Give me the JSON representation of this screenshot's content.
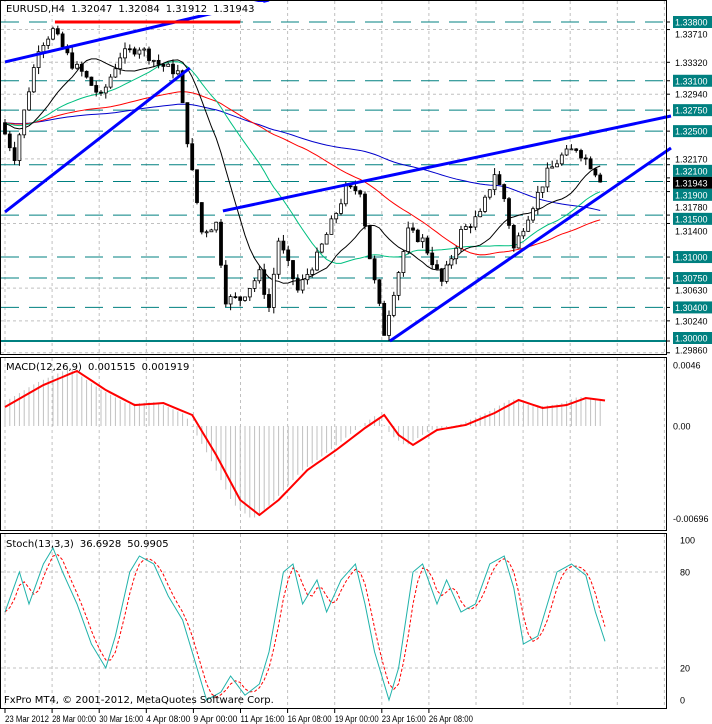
{
  "header": {
    "symbol": "EURUSD,H4",
    "open": "1.32047",
    "high": "1.32084",
    "low": "1.31912",
    "close": "1.31943"
  },
  "copyright": "FxPro MT4, © 2001-2012, MetaQuotes Software Corp.",
  "colors": {
    "bg": "#ffffff",
    "grid": "#c0c0c0",
    "level": "#008080",
    "trend": "#0000ff",
    "macd_signal": "#ff0000",
    "hist": "#c0c0c0",
    "stoch_main": "#20b2aa",
    "stoch_signal": "#ff0000"
  },
  "chart_data": [
    {
      "type": "candlestick",
      "title": "EURUSD,H4",
      "ylim": [
        1.2975,
        1.3405
      ],
      "bars": 125,
      "x_tick_labels": [
        "23 Mar 2012",
        "28 Mar 00:00",
        "30 Mar 16:00",
        "4 Apr 08:00",
        "9 Apr 00:00",
        "11 Apr 16:00",
        "16 Apr 08:00",
        "19 Apr 00:00",
        "23 Apr 16:00",
        "26 Apr 08:00"
      ],
      "y_tick_labels": [
        "1.33710",
        "1.33320",
        "1.32940",
        "1.32170",
        "1.31780",
        "1.31400",
        "1.30630",
        "1.30240",
        "1.29860"
      ],
      "y_tick_values": [
        1.3371,
        1.3332,
        1.3294,
        1.3217,
        1.3178,
        1.314,
        1.3063,
        1.3024,
        1.2986
      ],
      "levels": [
        {
          "label": "1.33800",
          "value": 1.338
        },
        {
          "label": "1.33100",
          "value": 1.331
        },
        {
          "label": "1.32750",
          "value": 1.3275
        },
        {
          "label": "1.32500",
          "value": 1.325
        },
        {
          "label": "1.32100",
          "value": 1.321
        },
        {
          "label": "1.31900",
          "value": 1.319
        },
        {
          "label": "1.31500",
          "value": 1.315
        },
        {
          "label": "1.31000",
          "value": 1.31
        },
        {
          "label": "1.30750",
          "value": 1.3075
        },
        {
          "label": "1.30400",
          "value": 1.304
        },
        {
          "label": "1.30000",
          "value": 1.3
        }
      ],
      "current_price": {
        "label": "1.31943",
        "value": 1.31943
      },
      "close_keypoints": [
        [
          0,
          1.326
        ],
        [
          3,
          1.322
        ],
        [
          6,
          1.33
        ],
        [
          8,
          1.335
        ],
        [
          11,
          1.337
        ],
        [
          15,
          1.333
        ],
        [
          17,
          1.332
        ],
        [
          21,
          1.329
        ],
        [
          25,
          1.334
        ],
        [
          29,
          1.335
        ],
        [
          33,
          1.333
        ],
        [
          37,
          1.332
        ],
        [
          40,
          1.32
        ],
        [
          42,
          1.313
        ],
        [
          45,
          1.314
        ],
        [
          47,
          1.305
        ],
        [
          50,
          1.305
        ],
        [
          54,
          1.308
        ],
        [
          56,
          1.304
        ],
        [
          58,
          1.312
        ],
        [
          62,
          1.306
        ],
        [
          66,
          1.31
        ],
        [
          69,
          1.314
        ],
        [
          72,
          1.318
        ],
        [
          75,
          1.318
        ],
        [
          77,
          1.31
        ],
        [
          80,
          1.301
        ],
        [
          82,
          1.306
        ],
        [
          85,
          1.313
        ],
        [
          88,
          1.312
        ],
        [
          92,
          1.307
        ],
        [
          96,
          1.313
        ],
        [
          100,
          1.315
        ],
        [
          103,
          1.32
        ],
        [
          105,
          1.317
        ],
        [
          107,
          1.311
        ],
        [
          110,
          1.315
        ],
        [
          114,
          1.32
        ],
        [
          117,
          1.322
        ],
        [
          120,
          1.323
        ],
        [
          123,
          1.321
        ],
        [
          125,
          1.3194
        ]
      ],
      "moving_averages": [
        {
          "period": 100,
          "color": "#0000cc"
        },
        {
          "period": 60,
          "color": "#ff0000"
        },
        {
          "period": 30,
          "color": "#00c080"
        },
        {
          "period": 14,
          "color": "#000000"
        }
      ],
      "trendlines": [
        {
          "from": [
            0,
            1.33324
          ],
          "to": [
            55,
            1.34062
          ],
          "color": "#0000ff"
        },
        {
          "from": [
            0,
            1.31537
          ],
          "to": [
            38.5,
            1.33252
          ],
          "color": "#0000ff"
        },
        {
          "from": [
            45.4,
            1.31549
          ],
          "to": [
            138.75,
            1.3268
          ],
          "color": "#0000ff"
        },
        {
          "from": [
            80.2,
            1.3
          ],
          "to": [
            138.75,
            1.32299
          ],
          "color": "#0000ff"
        },
        {
          "from": [
            10.4,
            1.338
          ],
          "to": [
            49,
            1.338
          ],
          "color": "#ff0000"
        }
      ]
    },
    {
      "type": "line",
      "title": "MACD(12,26,9) 0.001515 0.001919",
      "label": "MACD(12,26,9)",
      "main_value": "0.001515",
      "signal_value": "0.001919",
      "ylim": [
        -0.00696,
        0.0046
      ],
      "y_tick_labels": [
        "0.0046",
        "0.00",
        "-0.00696"
      ],
      "y_tick_values": [
        0.0046,
        0,
        -0.00696
      ],
      "signal_keypoints": [
        [
          0,
          0.00143
        ],
        [
          8,
          0.00309
        ],
        [
          15,
          0.00415
        ],
        [
          21,
          0.00271
        ],
        [
          27,
          0.00158
        ],
        [
          33,
          0.00173
        ],
        [
          39,
          0.00083
        ],
        [
          44,
          -0.00219
        ],
        [
          49,
          -0.00558
        ],
        [
          53,
          -0.00671
        ],
        [
          57,
          -0.00558
        ],
        [
          63,
          -0.00332
        ],
        [
          69,
          -0.00181
        ],
        [
          75,
          -0.00015
        ],
        [
          79,
          0.00083
        ],
        [
          82,
          -0.00068
        ],
        [
          85,
          -0.00143
        ],
        [
          90,
          -0.0003
        ],
        [
          96,
          8e-05
        ],
        [
          102,
          0.00098
        ],
        [
          107,
          0.00196
        ],
        [
          112,
          0.00136
        ],
        [
          117,
          0.00158
        ],
        [
          121,
          0.00211
        ],
        [
          125,
          0.00192
        ]
      ]
    },
    {
      "type": "line",
      "title": "Stoch(13,3,3) 36.6928 50.9905",
      "label": "Stoch(13,3,3)",
      "main_value": "36.6928",
      "signal_value": "50.9905",
      "ylim": [
        0,
        100
      ],
      "y_tick_labels": [
        "100",
        "80",
        "20",
        "0"
      ],
      "y_tick_values": [
        100,
        80,
        20,
        0
      ],
      "main_keypoints": [
        [
          0,
          55
        ],
        [
          3,
          80
        ],
        [
          5,
          60
        ],
        [
          8,
          85
        ],
        [
          10,
          95
        ],
        [
          12,
          80
        ],
        [
          15,
          60
        ],
        [
          18,
          35
        ],
        [
          21,
          20
        ],
        [
          23,
          40
        ],
        [
          26,
          80
        ],
        [
          28,
          90
        ],
        [
          31,
          85
        ],
        [
          34,
          65
        ],
        [
          37,
          50
        ],
        [
          40,
          20
        ],
        [
          42,
          0
        ],
        [
          45,
          5
        ],
        [
          47,
          15
        ],
        [
          50,
          3
        ],
        [
          53,
          10
        ],
        [
          55,
          30
        ],
        [
          58,
          80
        ],
        [
          60,
          85
        ],
        [
          62,
          60
        ],
        [
          65,
          75
        ],
        [
          67,
          55
        ],
        [
          70,
          75
        ],
        [
          73,
          85
        ],
        [
          75,
          60
        ],
        [
          77,
          30
        ],
        [
          80,
          0
        ],
        [
          82,
          20
        ],
        [
          85,
          80
        ],
        [
          87,
          85
        ],
        [
          90,
          60
        ],
        [
          92,
          75
        ],
        [
          95,
          55
        ],
        [
          98,
          60
        ],
        [
          101,
          85
        ],
        [
          104,
          90
        ],
        [
          106,
          70
        ],
        [
          108,
          35
        ],
        [
          111,
          40
        ],
        [
          115,
          80
        ],
        [
          118,
          85
        ],
        [
          121,
          78
        ],
        [
          123,
          55
        ],
        [
          125,
          36.69
        ]
      ]
    }
  ]
}
